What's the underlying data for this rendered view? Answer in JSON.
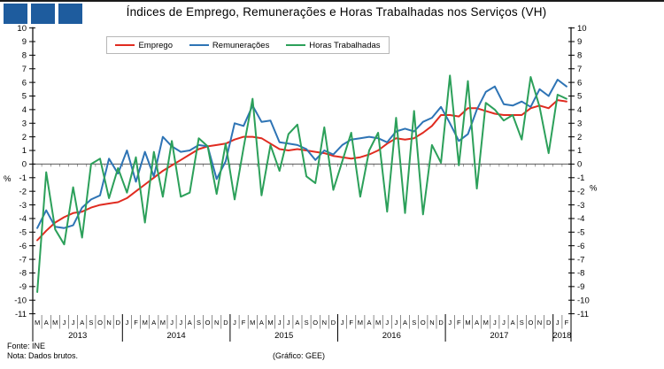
{
  "header": {
    "title": "Índices de Emprego, Remunerações e Horas Trabalhadas nos Serviços (VH)",
    "logo_color": "#1E5C9E",
    "logo_square_count": 3
  },
  "footer": {
    "fonte": "Fonte: INE",
    "nota": "Nota: Dados brutos.",
    "grafico": "(Gráfico: GEE)"
  },
  "chart_data": {
    "type": "line",
    "title": "Índices de Emprego, Remunerações e Horas Trabalhadas nos Serviços (VH)",
    "ylabel_left": "%",
    "ylabel_right": "%",
    "ylim": [
      -11,
      10
    ],
    "ytick_step": 1,
    "grid": false,
    "legend_position": "top-center",
    "zero_line": true,
    "x_labels": [
      "M",
      "A",
      "M",
      "J",
      "J",
      "A",
      "S",
      "O",
      "N",
      "D",
      "J",
      "F",
      "M",
      "A",
      "M",
      "J",
      "J",
      "A",
      "S",
      "O",
      "N",
      "D",
      "J",
      "F",
      "M",
      "A",
      "M",
      "J",
      "J",
      "A",
      "S",
      "O",
      "N",
      "D",
      "J",
      "F",
      "M",
      "A",
      "M",
      "J",
      "J",
      "A",
      "S",
      "O",
      "N",
      "D",
      "J",
      "F",
      "M",
      "A",
      "M",
      "J",
      "J",
      "A",
      "S",
      "O",
      "N",
      "D",
      "J",
      "F"
    ],
    "year_groups": [
      {
        "label": "2013",
        "months": 10
      },
      {
        "label": "2014",
        "months": 12
      },
      {
        "label": "2015",
        "months": 12
      },
      {
        "label": "2016",
        "months": 12
      },
      {
        "label": "2017",
        "months": 12
      },
      {
        "label": "2018",
        "months": 2
      }
    ],
    "series": [
      {
        "name": "Emprego",
        "color": "#E02B20",
        "values": [
          -5.6,
          -4.9,
          -4.3,
          -3.9,
          -3.6,
          -3.5,
          -3.2,
          -3.0,
          -2.9,
          -2.8,
          -2.5,
          -2.0,
          -1.5,
          -1.0,
          -0.5,
          -0.1,
          0.3,
          0.7,
          1.1,
          1.3,
          1.4,
          1.5,
          1.8,
          2.0,
          2.0,
          1.9,
          1.5,
          1.1,
          1.0,
          1.1,
          1.0,
          0.9,
          0.8,
          0.6,
          0.5,
          0.4,
          0.5,
          0.7,
          1.0,
          1.5,
          1.9,
          1.8,
          1.9,
          2.3,
          2.8,
          3.6,
          3.6,
          3.5,
          4.1,
          4.1,
          3.9,
          3.7,
          3.6,
          3.6,
          3.6,
          4.1,
          4.3,
          4.1,
          4.7,
          4.6
        ]
      },
      {
        "name": "Remunerações",
        "color": "#2E74B5",
        "values": [
          -4.7,
          -3.4,
          -4.6,
          -4.7,
          -4.5,
          -3.2,
          -2.6,
          -2.3,
          0.4,
          -0.7,
          1.0,
          -1.3,
          0.9,
          -0.9,
          2.0,
          1.3,
          0.9,
          1.0,
          1.4,
          1.3,
          -1.1,
          0.2,
          3.0,
          2.8,
          4.3,
          3.1,
          3.2,
          1.6,
          1.5,
          1.4,
          1.1,
          0.3,
          1.0,
          0.7,
          1.4,
          1.8,
          1.9,
          2.0,
          1.9,
          1.6,
          2.4,
          2.6,
          2.4,
          3.1,
          3.4,
          4.2,
          3.0,
          1.7,
          2.2,
          4.0,
          5.3,
          5.7,
          4.4,
          4.3,
          4.6,
          4.2,
          5.5,
          5.0,
          6.2,
          5.7
        ]
      },
      {
        "name": "Horas Trabalhadas",
        "color": "#2CA05A",
        "values": [
          -9.4,
          -0.6,
          -4.8,
          -5.9,
          -1.7,
          -5.4,
          0.0,
          0.4,
          -2.5,
          -0.3,
          -2.1,
          0.5,
          -4.3,
          0.9,
          -2.4,
          1.7,
          -2.4,
          -2.1,
          1.9,
          1.3,
          -2.2,
          1.5,
          -2.6,
          1.2,
          4.8,
          -2.3,
          1.4,
          -0.5,
          2.2,
          2.9,
          -0.9,
          -1.4,
          2.7,
          -1.9,
          0.2,
          2.3,
          -2.4,
          1.0,
          2.3,
          -3.5,
          3.4,
          -3.6,
          3.9,
          -3.7,
          1.4,
          0.1,
          6.5,
          -0.1,
          6.1,
          -1.8,
          4.5,
          4.0,
          3.2,
          3.6,
          1.8,
          6.4,
          4.2,
          0.8,
          5.1,
          4.8
        ]
      }
    ]
  }
}
